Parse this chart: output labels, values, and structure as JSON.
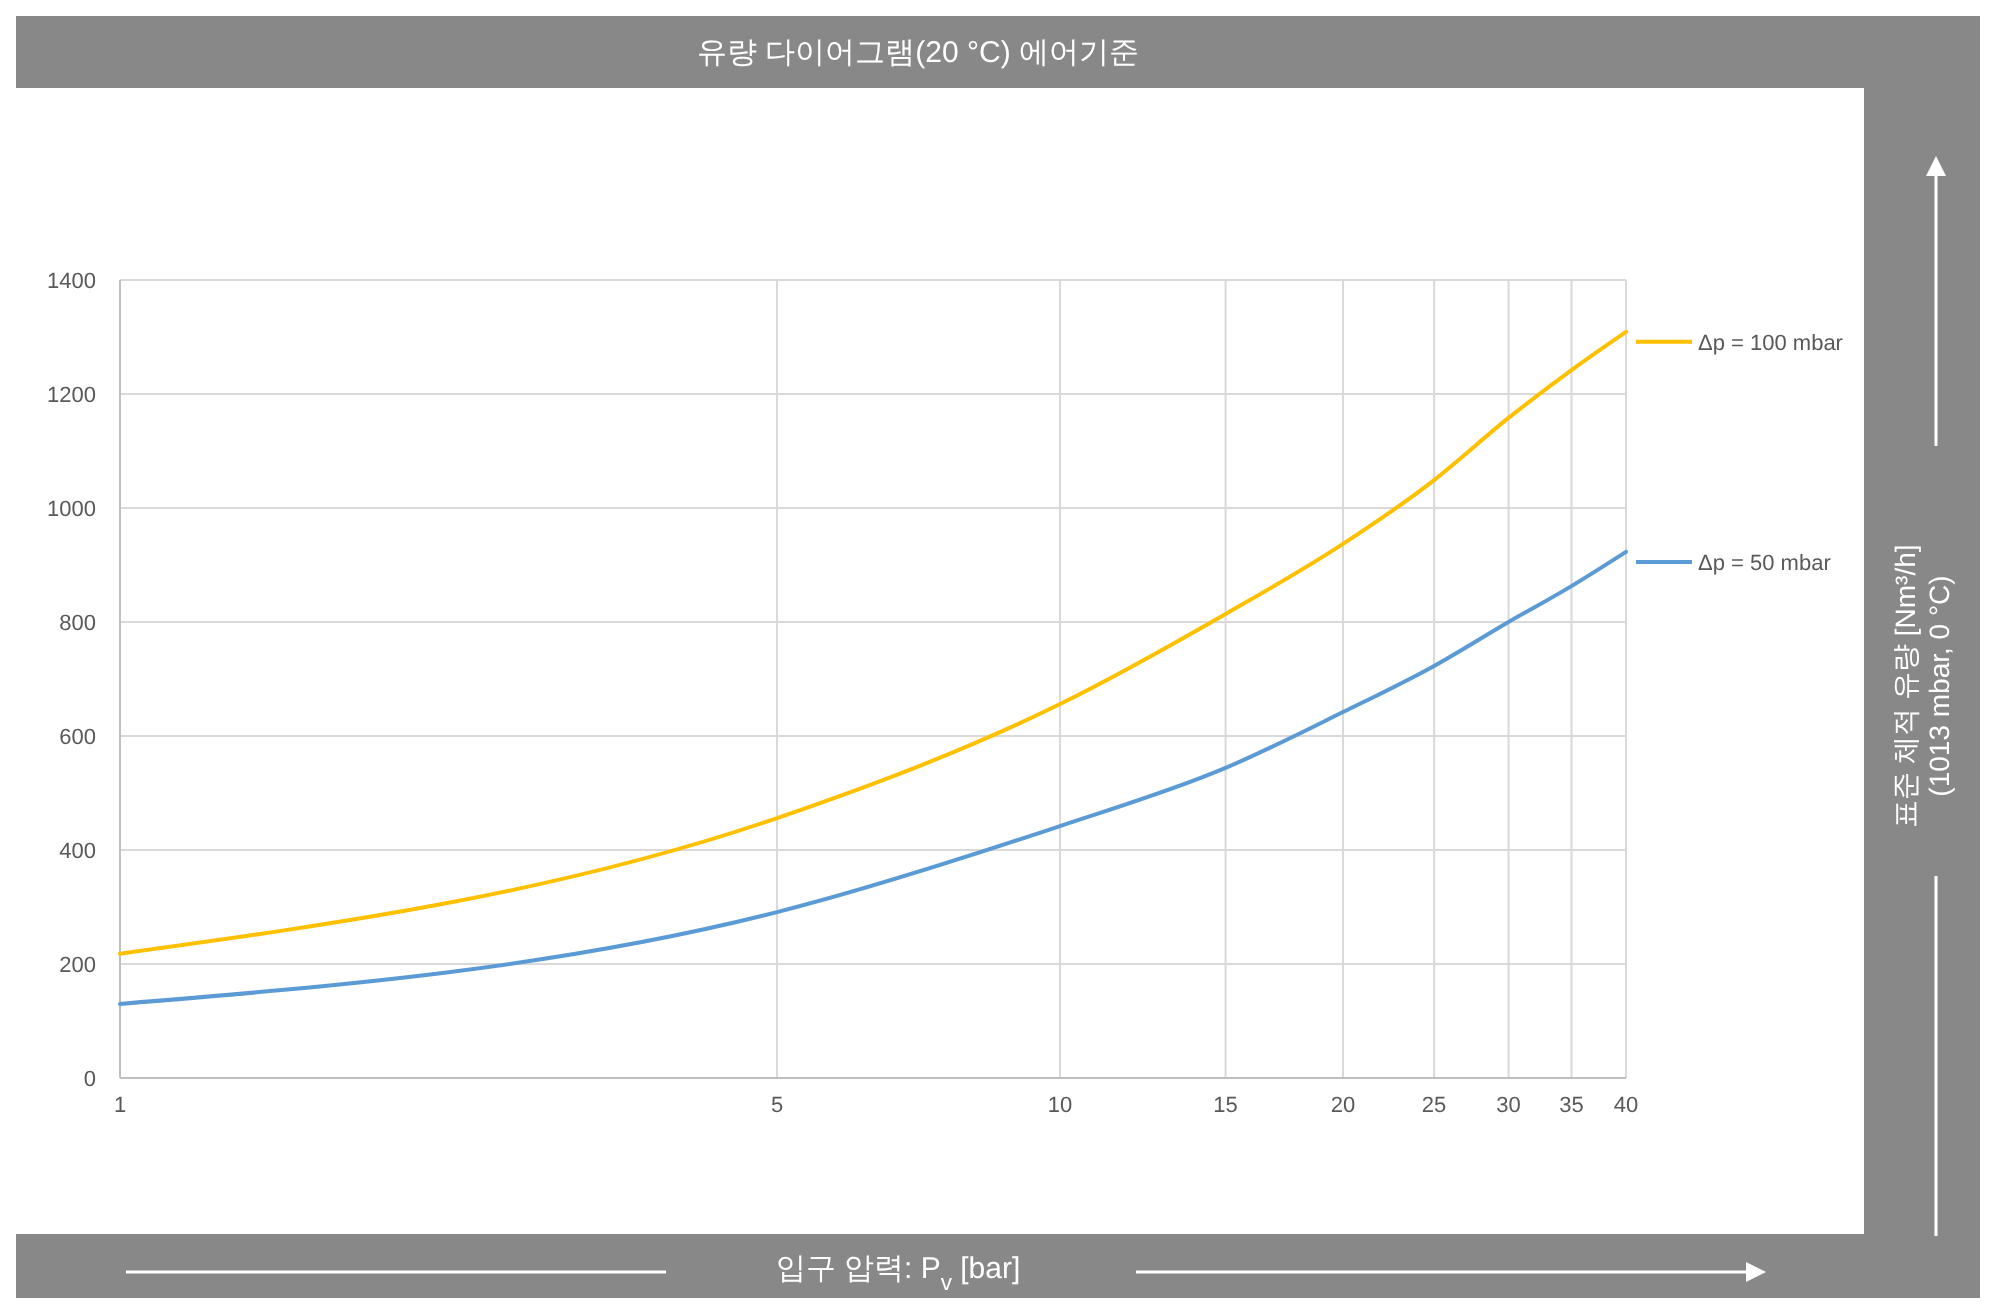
{
  "chart_data": {
    "type": "line",
    "title": "유량 다이어그램(20 °C) 에어기준",
    "xlabel": "입구 압력: P$_{v}$ [bar]",
    "annotations": [
      "표준 체적 유량 [Nm³/h]\n(1013 mbar, 0 °C)"
    ],
    "x": [
      1,
      5,
      10,
      15,
      20,
      25,
      30,
      35,
      40
    ],
    "series": [
      {
        "name": "Δp = 100 mbar",
        "color": "#ffc000",
        "values": [
          218,
          456,
          656,
          814,
          937,
          1049,
          1158,
          1242,
          1309
        ]
      },
      {
        "name": "Δp = 50 mbar",
        "color": "#5b9bd5",
        "values": [
          130,
          291,
          442,
          544,
          642,
          723,
          800,
          863,
          923
        ]
      }
    ],
    "log": "x",
    "xlim": [
      1,
      40
    ],
    "xticks": [
      1,
      5,
      10,
      15,
      20,
      25,
      30,
      35,
      40
    ],
    "ylim": [
      0,
      1400
    ],
    "yticks": [
      0,
      200,
      400,
      600,
      800,
      1000,
      1200,
      1400
    ],
    "grid": true,
    "legend": "right",
    "line_style": "solid"
  }
}
